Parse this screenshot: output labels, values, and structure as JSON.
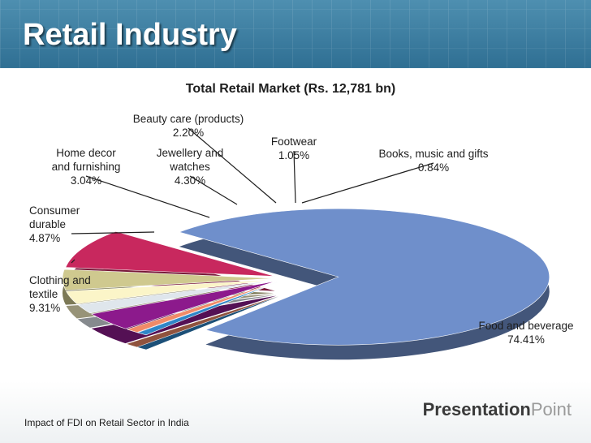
{
  "slide": {
    "title": "Retail Industry",
    "footer_text": "Impact of FDI on Retail Sector in India",
    "brand_main": "Presentation",
    "brand_accent": "Point"
  },
  "chart_data": {
    "type": "pie",
    "style": "3d-exploded",
    "title": "Total Retail Market (Rs. 12,781 bn)",
    "slices": [
      {
        "label": "Food and beverage",
        "value": 74.41,
        "value_label": "74.41%",
        "color": "#6f8fcb"
      },
      {
        "label": "Clothing and textile",
        "value": 9.31,
        "value_label": "9.31%",
        "color": "#c8285e"
      },
      {
        "label": "Consumer durable",
        "value": 4.87,
        "value_label": "4.87%",
        "color": "#cfc98f"
      },
      {
        "label": "Home decor and furnishing",
        "value": 3.04,
        "value_label": "3.04%",
        "color": "#fbf5c8"
      },
      {
        "label": "Beauty care (products)",
        "value": 2.2,
        "value_label": "2.20%",
        "color": "#dfe6ec"
      },
      {
        "label": "Jewellery and watches",
        "value": 4.3,
        "value_label": "4.30%",
        "color": "#8c1a8c"
      },
      {
        "label": "Footwear",
        "value": 1.05,
        "value_label": "1.05%",
        "color": "#f08a68"
      },
      {
        "label": "Books, music and gifts",
        "value": 0.84,
        "value_label": "0.84%",
        "color": "#2f86c8"
      }
    ]
  }
}
